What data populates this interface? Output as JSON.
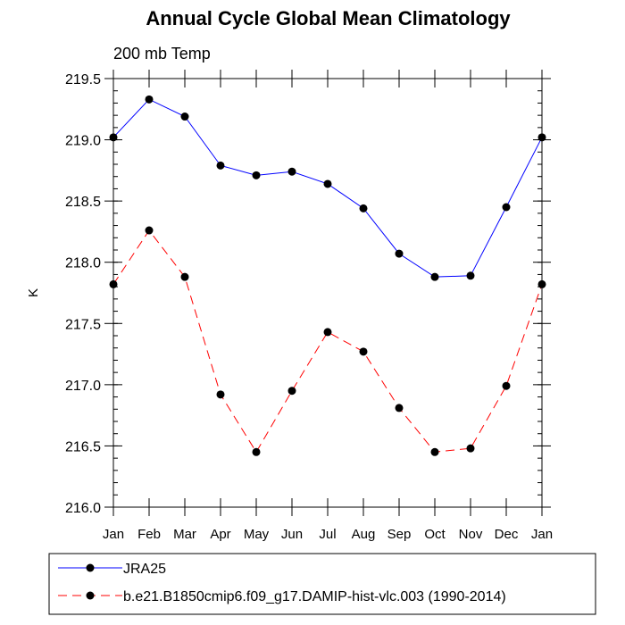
{
  "chart_data": {
    "type": "line",
    "title": "Annual Cycle Global Mean Climatology",
    "subtitle": "200 mb Temp",
    "xlabel": "",
    "ylabel": "K",
    "categories": [
      "Jan",
      "Feb",
      "Mar",
      "Apr",
      "May",
      "Jun",
      "Jul",
      "Aug",
      "Sep",
      "Oct",
      "Nov",
      "Dec",
      "Jan"
    ],
    "ylim": [
      216.0,
      219.5
    ],
    "yticks": [
      "216.0",
      "216.5",
      "217.0",
      "217.5",
      "218.0",
      "218.5",
      "219.0",
      "219.5"
    ],
    "grid": false,
    "legend_position": "bottom",
    "series": [
      {
        "name": "JRA25",
        "color": "#0000ff",
        "dash": "solid",
        "values": [
          219.02,
          219.33,
          219.19,
          218.79,
          218.71,
          218.74,
          218.64,
          218.44,
          218.07,
          217.88,
          217.89,
          218.45,
          219.02
        ]
      },
      {
        "name": "b.e21.B1850cmip6.f09_g17.DAMIP-hist-vlc.003 (1990-2014)",
        "color": "#ff0000",
        "dash": "dashed",
        "values": [
          217.82,
          218.26,
          217.88,
          216.92,
          216.45,
          216.95,
          217.43,
          217.27,
          216.81,
          216.45,
          216.48,
          216.99,
          217.82
        ]
      }
    ]
  }
}
